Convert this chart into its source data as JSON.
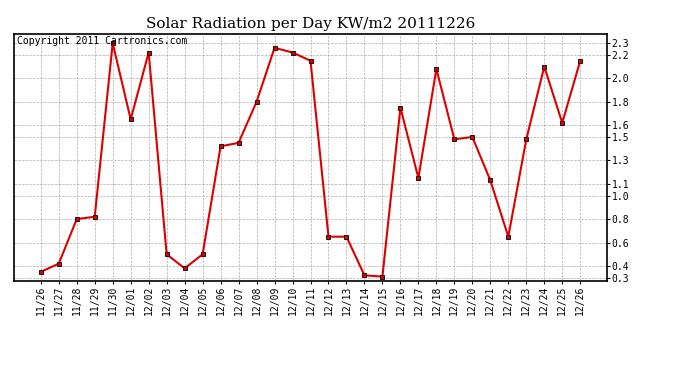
{
  "title": "Solar Radiation per Day KW/m2 20111226",
  "copyright_text": "Copyright 2011 Cartronics.com",
  "dates": [
    "11/26",
    "11/27",
    "11/28",
    "11/29",
    "11/30",
    "12/01",
    "12/02",
    "12/03",
    "12/04",
    "12/05",
    "12/06",
    "12/07",
    "12/08",
    "12/09",
    "12/10",
    "12/11",
    "12/12",
    "12/13",
    "12/14",
    "12/15",
    "12/16",
    "12/17",
    "12/18",
    "12/19",
    "12/20",
    "12/21",
    "12/22",
    "12/23",
    "12/24",
    "12/25",
    "12/26"
  ],
  "values": [
    0.35,
    0.42,
    0.8,
    0.82,
    2.3,
    1.65,
    2.22,
    0.5,
    0.38,
    0.5,
    1.42,
    1.45,
    1.8,
    2.26,
    2.22,
    2.15,
    0.65,
    0.65,
    0.32,
    0.31,
    1.75,
    1.15,
    2.08,
    1.48,
    1.5,
    1.13,
    0.65,
    1.48,
    2.1,
    1.62,
    2.15
  ],
  "line_color": "#dd0000",
  "marker": "s",
  "markersize": 3,
  "linewidth": 1.5,
  "yticks": [
    0.3,
    0.4,
    0.6,
    0.8,
    1.0,
    1.1,
    1.3,
    1.5,
    1.6,
    1.8,
    2.0,
    2.2,
    2.3
  ],
  "ylim": [
    0.27,
    2.38
  ],
  "background_color": "#ffffff",
  "grid_color": "#999999",
  "title_fontsize": 11,
  "tick_fontsize": 7,
  "copyright_fontsize": 7
}
